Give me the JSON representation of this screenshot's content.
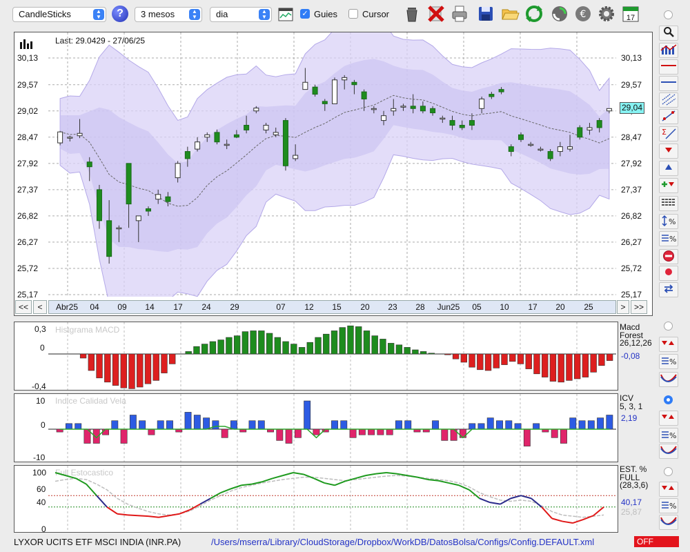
{
  "toolbar": {
    "chart_type": "CandleSticks",
    "period": "3 mesos",
    "interval": "dia",
    "guides_label": "Guies",
    "guides_checked": true,
    "cursor_label": "Cursor",
    "cursor_checked": false,
    "calendar_day": "17"
  },
  "main_chart": {
    "last_label": "Last: 29.0429 - 27/06/25",
    "current_value": "29,04",
    "y_ticks": [
      "30,13",
      "29,57",
      "29,02",
      "28,47",
      "27,92",
      "27,37",
      "26,82",
      "26,27",
      "25,72",
      "25,17"
    ],
    "x_labels": [
      "Abr25",
      "04",
      "09",
      "14",
      "17",
      "24",
      "29",
      "07",
      "12",
      "15",
      "20",
      "23",
      "28",
      "Jun25",
      "05",
      "10",
      "17",
      "20",
      "25"
    ],
    "nav": {
      "first": "<<",
      "prev": "<",
      "next": ">",
      "last": ">>"
    }
  },
  "chart_data": [
    {
      "type": "candlestick",
      "title": "Last: 29.0429 - 27/06/25",
      "ylim": [
        25.17,
        30.13
      ],
      "y_ticks": [
        30.13,
        29.57,
        29.02,
        28.47,
        27.92,
        27.37,
        26.82,
        26.27,
        25.72,
        25.17
      ],
      "candles": [
        [
          28.35,
          28.58,
          28.3,
          28.6
        ],
        [
          28.47,
          28.47,
          28.38,
          28.5
        ],
        [
          28.5,
          28.55,
          28.45,
          28.85
        ],
        [
          27.95,
          27.85,
          27.55,
          28.05
        ],
        [
          27.37,
          26.72,
          26.55,
          27.47
        ],
        [
          26.72,
          25.97,
          25.82,
          27.15
        ],
        [
          26.57,
          26.57,
          26.27,
          26.62
        ],
        [
          27.92,
          27.07,
          26.57,
          27.92
        ],
        [
          26.72,
          26.82,
          26.27,
          26.82
        ],
        [
          26.97,
          26.92,
          26.82,
          27.02
        ],
        [
          27.17,
          27.27,
          27.07,
          27.37
        ],
        [
          27.22,
          27.12,
          27.02,
          27.32
        ],
        [
          27.62,
          27.92,
          27.52,
          27.97
        ],
        [
          28.17,
          28.02,
          27.85,
          28.27
        ],
        [
          28.22,
          28.37,
          28.17,
          28.47
        ],
        [
          28.47,
          28.52,
          28.37,
          28.57
        ],
        [
          28.57,
          28.37,
          28.32,
          28.63
        ],
        [
          28.32,
          28.32,
          28.22,
          28.42
        ],
        [
          28.52,
          28.47,
          28.45,
          28.62
        ],
        [
          28.72,
          28.62,
          28.55,
          28.92
        ],
        [
          29.02,
          29.08,
          28.97,
          29.12
        ],
        [
          28.62,
          28.72,
          28.55,
          28.77
        ],
        [
          28.52,
          28.57,
          28.47,
          28.67
        ],
        [
          28.82,
          27.87,
          27.77,
          28.87
        ],
        [
          28.02,
          28.09,
          27.97,
          28.32
        ],
        [
          29.47,
          29.62,
          29.47,
          29.92
        ],
        [
          29.52,
          29.37,
          29.32,
          29.57
        ],
        [
          29.22,
          29.17,
          29.02,
          29.27
        ],
        [
          29.17,
          29.67,
          29.17,
          29.72
        ],
        [
          29.67,
          29.72,
          29.47,
          29.77
        ],
        [
          29.62,
          29.57,
          29.37,
          29.67
        ],
        [
          29.42,
          29.27,
          29.02,
          29.47
        ],
        [
          29.07,
          29.07,
          28.97,
          29.12
        ],
        [
          28.82,
          28.92,
          28.72,
          29.02
        ],
        [
          29.02,
          29.07,
          28.92,
          29.27
        ],
        [
          29.12,
          29.12,
          29.02,
          29.17
        ],
        [
          29.12,
          29.07,
          28.97,
          29.37
        ],
        [
          29.12,
          29.02,
          28.97,
          29.22
        ],
        [
          29.07,
          28.98,
          28.92,
          29.12
        ],
        [
          28.87,
          28.87,
          28.77,
          28.92
        ],
        [
          28.82,
          28.72,
          28.62,
          28.92
        ],
        [
          28.72,
          28.67,
          28.62,
          28.82
        ],
        [
          28.82,
          28.72,
          28.62,
          28.97
        ],
        [
          29.07,
          29.27,
          28.97,
          29.32
        ],
        [
          29.37,
          29.32,
          29.27,
          29.42
        ],
        [
          29.47,
          29.42,
          29.37,
          29.52
        ],
        [
          28.27,
          28.17,
          28.07,
          28.32
        ],
        [
          28.52,
          28.42,
          28.37,
          28.57
        ],
        [
          28.32,
          28.32,
          28.27,
          28.37
        ],
        [
          28.2,
          28.22,
          28.17,
          28.27
        ],
        [
          28.17,
          28.02,
          27.97,
          28.22
        ],
        [
          28.17,
          28.27,
          28.07,
          28.37
        ],
        [
          28.22,
          28.27,
          28.17,
          28.52
        ],
        [
          28.67,
          28.47,
          28.42,
          28.72
        ],
        [
          28.62,
          28.67,
          28.52,
          28.77
        ],
        [
          28.82,
          28.67,
          28.57,
          28.87
        ],
        [
          29.02,
          29.07,
          28.97,
          29.07
        ]
      ]
    },
    {
      "type": "bar",
      "title": "Histgrama MACD",
      "legend": [
        "Macd",
        "Forest",
        "26,12,26"
      ],
      "current": "-0,08",
      "ylim": [
        -0.4,
        0.3
      ],
      "y_ticks": [
        "0,3",
        "0",
        "-0,4"
      ],
      "values": [
        0,
        0,
        0,
        -0.05,
        -0.2,
        -0.29,
        -0.34,
        -0.38,
        -0.41,
        -0.42,
        -0.4,
        -0.36,
        -0.32,
        -0.23,
        -0.12,
        0,
        0.03,
        0.09,
        0.12,
        0.15,
        0.17,
        0.2,
        0.22,
        0.27,
        0.28,
        0.28,
        0.25,
        0.2,
        0.15,
        0.12,
        0.08,
        0.14,
        0.2,
        0.24,
        0.28,
        0.32,
        0.34,
        0.33,
        0.28,
        0.22,
        0.18,
        0.13,
        0.11,
        0.08,
        0.05,
        0.03,
        0.01,
        0,
        -0.01,
        -0.06,
        -0.1,
        -0.16,
        -0.19,
        -0.2,
        -0.17,
        -0.13,
        -0.09,
        -0.12,
        -0.18,
        -0.24,
        -0.28,
        -0.33,
        -0.34,
        -0.32,
        -0.3,
        -0.28,
        -0.22,
        -0.14,
        -0.08
      ]
    },
    {
      "type": "bar",
      "title": "Indice Calidad Vela",
      "legend": [
        "ICV",
        "5, 3, 1"
      ],
      "current": "2,19",
      "ylim": [
        -10,
        10
      ],
      "y_ticks": [
        "10",
        "0",
        "-10"
      ],
      "values": [
        -1,
        2,
        2,
        -5,
        -5,
        -2,
        3,
        -5,
        5,
        3,
        -2,
        3,
        3,
        -1,
        6,
        5,
        4,
        3,
        -3,
        3,
        -1,
        3,
        3,
        -1,
        -4,
        -5,
        -3,
        10,
        -2,
        -1,
        3,
        3,
        -3,
        -2,
        -2,
        -2,
        -2,
        3,
        3,
        -1,
        -1,
        3,
        -4,
        -4,
        -3,
        2,
        2,
        4,
        3,
        3,
        2,
        -6,
        2,
        -1,
        -3,
        -5,
        4,
        3,
        3,
        4,
        5
      ],
      "line": [
        0,
        0,
        0,
        0,
        -3,
        0,
        0,
        0,
        0,
        0,
        0,
        0,
        0,
        0,
        0,
        0,
        0,
        1,
        1,
        0,
        0,
        0,
        0,
        0,
        0,
        0,
        0,
        0,
        -3,
        0,
        0,
        0,
        0,
        0,
        0,
        0,
        0,
        0,
        0,
        0,
        0,
        0,
        0,
        0,
        -3,
        0,
        0,
        0,
        0,
        0,
        0,
        0,
        0,
        0,
        0,
        0,
        0,
        0,
        0,
        0,
        0
      ]
    },
    {
      "type": "line",
      "title": "Full Estocastico",
      "legend": [
        "EST. %",
        "FULL",
        "(28,3,6)"
      ],
      "current_k": "40,17",
      "current_d": "25,87",
      "ylim": [
        0,
        100
      ],
      "y_ticks": [
        "100",
        "60",
        "40",
        "0"
      ],
      "series": [
        {
          "values": [
            100,
            95,
            90,
            80,
            60,
            40,
            28,
            26,
            25,
            24,
            22,
            25,
            28,
            35,
            45,
            55,
            65,
            72,
            78,
            80,
            84,
            90,
            95,
            100,
            97,
            90,
            82,
            78,
            85,
            90,
            95,
            98,
            100,
            98,
            95,
            92,
            88,
            86,
            82,
            78,
            70,
            55,
            48,
            45,
            55,
            60,
            55,
            40,
            20,
            15,
            12,
            18,
            25,
            40
          ]
        },
        {
          "values": [
            85,
            88,
            90,
            88,
            80,
            70,
            55,
            45,
            38,
            32,
            28,
            26,
            28,
            33,
            42,
            52,
            60,
            68,
            74,
            78,
            82,
            85,
            88,
            90,
            92,
            92,
            90,
            88,
            86,
            88,
            90,
            92,
            94,
            95,
            94,
            92,
            90,
            88,
            86,
            82,
            75,
            65,
            58,
            52,
            50,
            52,
            50,
            42,
            32,
            26,
            24,
            22,
            24,
            26
          ]
        }
      ]
    }
  ],
  "footer": {
    "instrument": "LYXOR UCITS ETF MSCI INDIA (INR.PA)",
    "config_path": "/Users/mserra/Library/CloudStorage/Dropbox/WorkDB/DatosBolsa/Configs/Config.DEFAULT.xml",
    "status": "OFF"
  },
  "colors": {
    "up": "#1e8c1e",
    "down": "#dd1f1f",
    "band": "#d9d2f7",
    "band_inner": "#c7bdf0",
    "icv_pos": "#2d5be3",
    "icv_neg": "#e0246a",
    "stoch_d": "#bdbdbd",
    "current_box": "#86f2f2"
  }
}
